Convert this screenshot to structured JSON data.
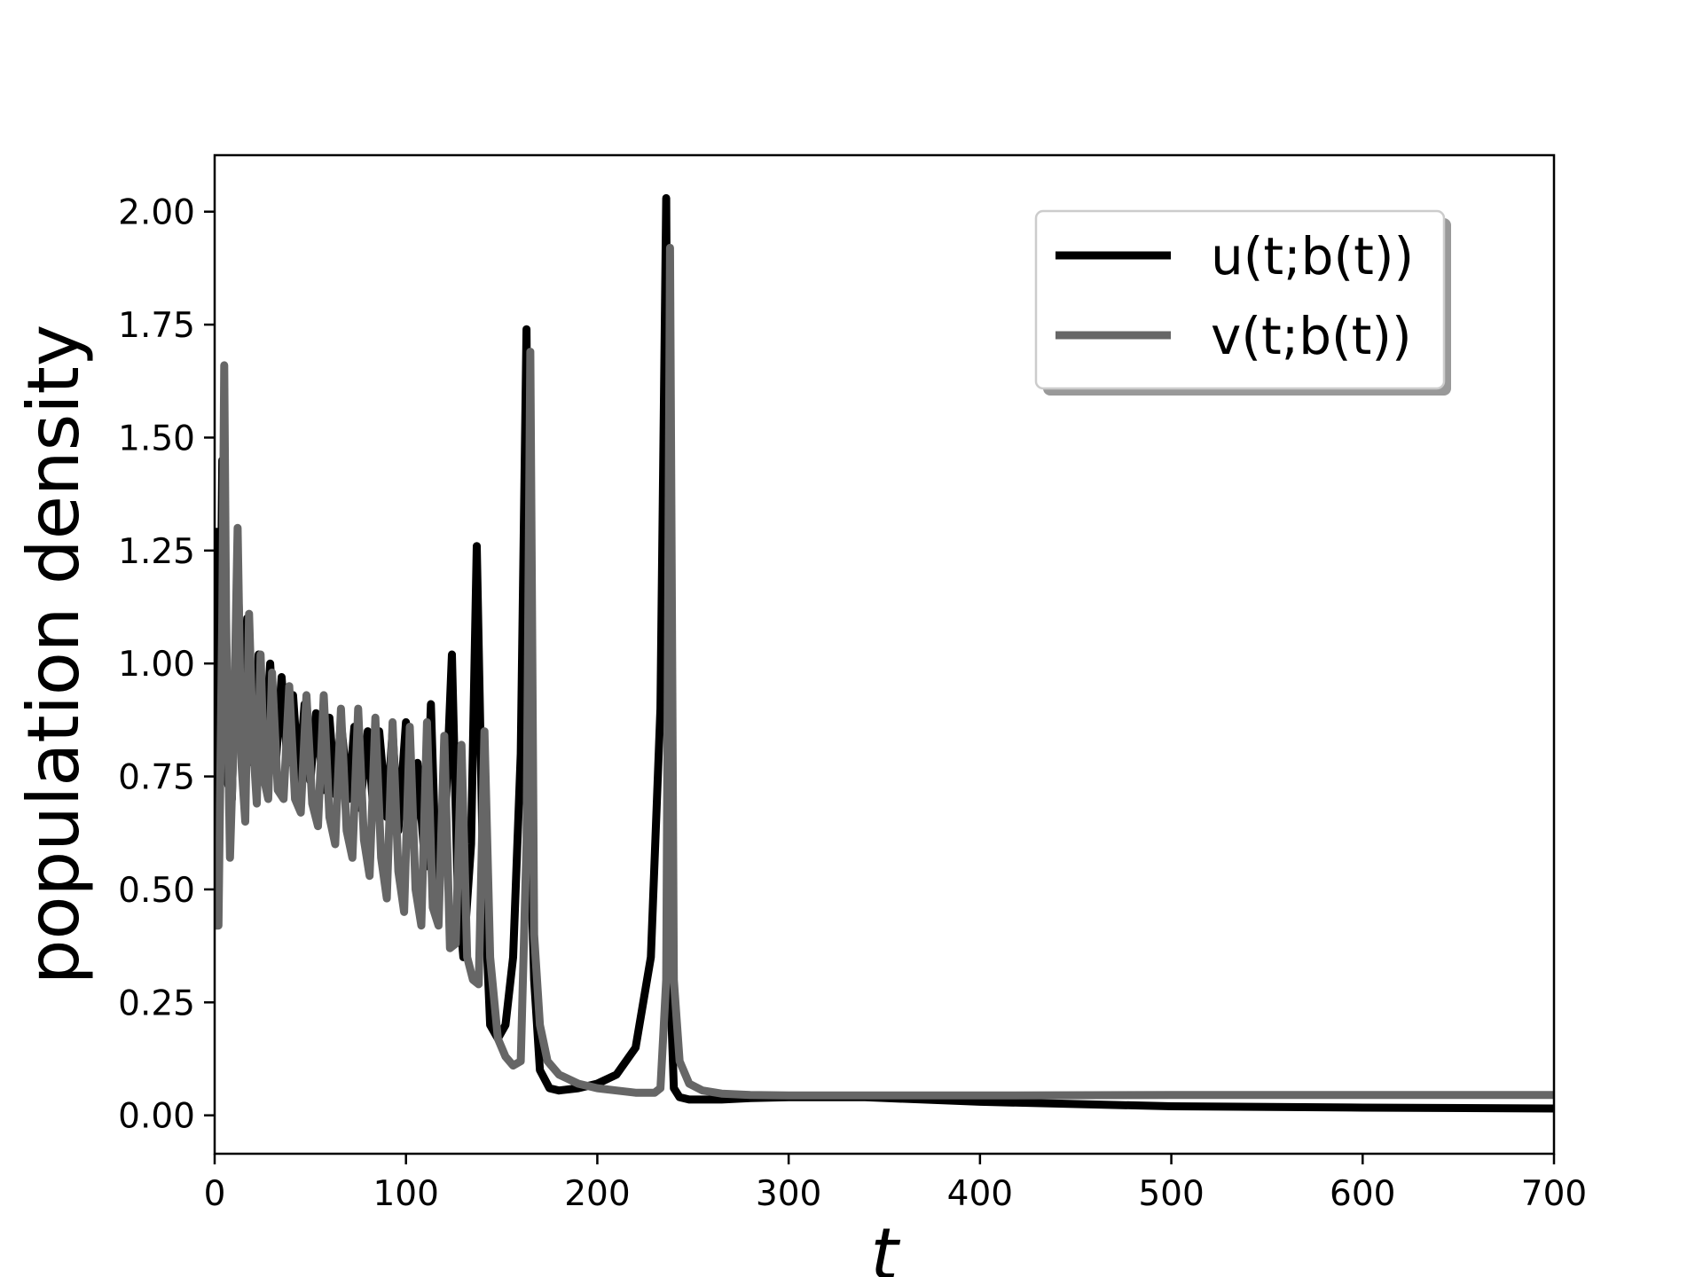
{
  "chart_data": {
    "type": "line",
    "title": "",
    "xlabel": "t",
    "ylabel": "population density",
    "xlim": [
      0,
      700
    ],
    "ylim": [
      -0.085,
      2.125
    ],
    "xticks": [
      0,
      100,
      200,
      300,
      400,
      500,
      600,
      700
    ],
    "xtick_labels": [
      "0",
      "100",
      "200",
      "300",
      "400",
      "500",
      "600",
      "700"
    ],
    "yticks": [
      0,
      0.25,
      0.5,
      0.75,
      1.0,
      1.25,
      1.5,
      1.75,
      2.0
    ],
    "ytick_labels": [
      "0.00",
      "0.25",
      "0.50",
      "0.75",
      "1.00",
      "1.25",
      "1.50",
      "1.75",
      "2.00"
    ],
    "grid": false,
    "legend_position": "top-right",
    "series": [
      {
        "name": "u(t;b(t))",
        "color": "#000000",
        "x": [
          0,
          2,
          4,
          6,
          9,
          12,
          15,
          17,
          20,
          23,
          26,
          29,
          32,
          35,
          38,
          41,
          44,
          47,
          50,
          53,
          57,
          60,
          63,
          66,
          70,
          73,
          76,
          80,
          83,
          86,
          90,
          93,
          96,
          100,
          103,
          106,
          110,
          113,
          116,
          120,
          124,
          127,
          130,
          134,
          137,
          140,
          144,
          148,
          152,
          156,
          160,
          163,
          165,
          167,
          170,
          175,
          180,
          190,
          200,
          210,
          220,
          228,
          233,
          236,
          238,
          240,
          243,
          248,
          255,
          265,
          280,
          300,
          340,
          400,
          500,
          600,
          700
        ],
        "y": [
          1.3,
          0.55,
          1.45,
          0.75,
          0.7,
          1.2,
          0.8,
          1.1,
          0.78,
          1.02,
          0.8,
          1.0,
          0.78,
          0.97,
          0.78,
          0.93,
          0.74,
          0.91,
          0.74,
          0.89,
          0.72,
          0.88,
          0.71,
          0.87,
          0.7,
          0.86,
          0.68,
          0.85,
          0.67,
          0.85,
          0.66,
          0.85,
          0.63,
          0.87,
          0.6,
          0.78,
          0.55,
          0.91,
          0.5,
          0.6,
          1.02,
          0.5,
          0.35,
          0.6,
          1.26,
          0.6,
          0.2,
          0.17,
          0.2,
          0.35,
          0.8,
          1.74,
          0.6,
          0.3,
          0.1,
          0.06,
          0.055,
          0.06,
          0.07,
          0.09,
          0.15,
          0.35,
          0.9,
          2.03,
          0.3,
          0.06,
          0.04,
          0.035,
          0.035,
          0.035,
          0.038,
          0.04,
          0.04,
          0.03,
          0.02,
          0.017,
          0.015
        ]
      },
      {
        "name": "v(t;b(t))",
        "color": "#666666",
        "x": [
          0,
          2,
          4,
          5,
          6,
          8,
          10,
          12,
          14,
          16,
          18,
          20,
          22,
          24,
          26,
          28,
          30,
          33,
          36,
          39,
          42,
          45,
          48,
          51,
          54,
          57,
          60,
          63,
          66,
          69,
          72,
          75,
          78,
          81,
          84,
          87,
          90,
          93,
          96,
          99,
          102,
          105,
          108,
          111,
          114,
          117,
          120,
          123,
          126,
          129,
          132,
          135,
          138,
          141,
          144,
          148,
          152,
          156,
          160,
          163,
          165,
          167,
          170,
          174,
          180,
          190,
          200,
          210,
          220,
          230,
          233,
          236,
          238,
          240,
          243,
          248,
          255,
          265,
          280,
          300,
          340,
          400,
          500,
          600,
          700
        ],
        "y": [
          0.42,
          0.42,
          1.1,
          1.66,
          1.1,
          0.57,
          0.85,
          1.3,
          0.78,
          0.65,
          1.11,
          0.83,
          0.69,
          1.02,
          0.74,
          0.7,
          0.98,
          0.72,
          0.7,
          0.95,
          0.7,
          0.67,
          0.93,
          0.69,
          0.64,
          0.93,
          0.66,
          0.6,
          0.9,
          0.63,
          0.57,
          0.9,
          0.61,
          0.53,
          0.88,
          0.57,
          0.48,
          0.87,
          0.54,
          0.45,
          0.86,
          0.5,
          0.42,
          0.87,
          0.46,
          0.42,
          0.84,
          0.37,
          0.38,
          0.82,
          0.35,
          0.3,
          0.29,
          0.85,
          0.35,
          0.17,
          0.13,
          0.11,
          0.12,
          0.6,
          1.69,
          0.4,
          0.2,
          0.12,
          0.09,
          0.07,
          0.06,
          0.055,
          0.05,
          0.05,
          0.06,
          0.3,
          1.92,
          0.3,
          0.12,
          0.07,
          0.055,
          0.048,
          0.045,
          0.044,
          0.044,
          0.044,
          0.045,
          0.045,
          0.045
        ]
      }
    ]
  }
}
